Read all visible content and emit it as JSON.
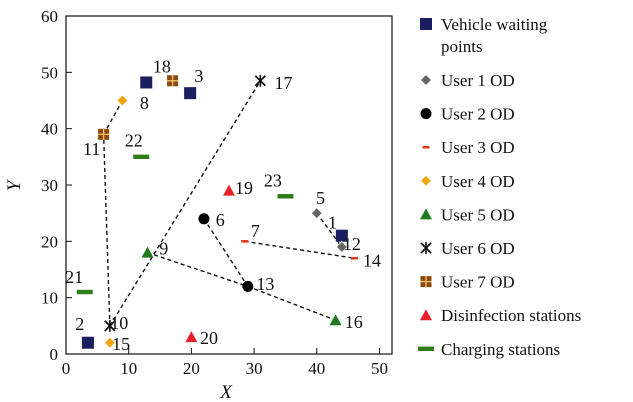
{
  "chart_data": {
    "type": "scatter",
    "title": "",
    "xlabel": "X",
    "ylabel": "Y",
    "xlim": [
      0,
      52
    ],
    "ylim": [
      0,
      60
    ],
    "xticks": [
      "0",
      "10",
      "20",
      "30",
      "40",
      "50"
    ],
    "yticks": [
      "0",
      "10",
      "20",
      "30",
      "40",
      "50",
      "60"
    ],
    "grid": false,
    "legend_position": "right-outside",
    "series": [
      {
        "name": "Vehicle waiting points",
        "marker": "square",
        "color": "#1a1f5e",
        "points": [
          {
            "id": "2",
            "x": 3.5,
            "y": 2
          },
          {
            "id": "18",
            "x": 12.8,
            "y": 48.2
          },
          {
            "id": "3",
            "x": 19.8,
            "y": 46.3
          },
          {
            "id": "1",
            "x": 44,
            "y": 21
          }
        ]
      },
      {
        "name": "User 1 OD",
        "marker": "diamond",
        "color": "#666666",
        "points": [
          {
            "id": "5",
            "x": 40,
            "y": 25
          },
          {
            "id": "12",
            "x": 44,
            "y": 19
          }
        ]
      },
      {
        "name": "User 2 OD",
        "marker": "circle",
        "color": "#000000",
        "points": [
          {
            "id": "6",
            "x": 22,
            "y": 24
          },
          {
            "id": "13",
            "x": 29,
            "y": 12
          }
        ]
      },
      {
        "name": "User 3 OD",
        "marker": "dash",
        "color": "#e03a1e",
        "points": [
          {
            "id": "7",
            "x": 28.5,
            "y": 20
          },
          {
            "id": "14",
            "x": 46,
            "y": 17
          }
        ]
      },
      {
        "name": "User 4 OD",
        "marker": "diamond",
        "color": "#f0a70f",
        "points": [
          {
            "id": "8",
            "x": 9,
            "y": 45
          },
          {
            "id": "15",
            "x": 7,
            "y": 2
          }
        ]
      },
      {
        "name": "User 5 OD",
        "marker": "triangle",
        "color": "#1f7a1f",
        "points": [
          {
            "id": "9",
            "x": 13,
            "y": 18
          },
          {
            "id": "16",
            "x": 43,
            "y": 6
          }
        ]
      },
      {
        "name": "User 6 OD",
        "marker": "star",
        "color": "#111111",
        "points": [
          {
            "id": "10",
            "x": 7,
            "y": 5
          },
          {
            "id": "17",
            "x": 31,
            "y": 48.5
          }
        ]
      },
      {
        "name": "User 7 OD",
        "marker": "boxcross",
        "color": "#8b4a12",
        "points": [
          {
            "id": "11",
            "x": 6,
            "y": 39
          },
          {
            "id": "18",
            "x": 17,
            "y": 48.5
          }
        ]
      },
      {
        "name": "Disinfection stations",
        "marker": "triangle",
        "color": "#e8202a",
        "points": [
          {
            "id": "19",
            "x": 26,
            "y": 29
          },
          {
            "id": "20",
            "x": 20,
            "y": 3
          }
        ]
      },
      {
        "name": "Charging stations",
        "marker": "bar",
        "color": "#2e7d1a",
        "points": [
          {
            "id": "21",
            "x": 3,
            "y": 11
          },
          {
            "id": "22",
            "x": 12,
            "y": 35
          },
          {
            "id": "23",
            "x": 35,
            "y": 28
          }
        ]
      }
    ],
    "routes": [
      {
        "from": [
          7,
          5
        ],
        "to": [
          6,
          39
        ]
      },
      {
        "from": [
          6,
          39
        ],
        "to": [
          9,
          45
        ]
      },
      {
        "from": [
          7,
          5
        ],
        "to": [
          31,
          48.5
        ]
      },
      {
        "from": [
          22,
          24
        ],
        "to": [
          29,
          12
        ]
      },
      {
        "from": [
          29,
          12
        ],
        "to": [
          43,
          6
        ]
      },
      {
        "from": [
          13,
          18
        ],
        "to": [
          29,
          12
        ]
      },
      {
        "from": [
          28.5,
          20
        ],
        "to": [
          46,
          17
        ]
      },
      {
        "from": [
          40,
          25
        ],
        "to": [
          44,
          19
        ]
      }
    ],
    "labels": [
      {
        "text": "1",
        "x": 42.5,
        "y": 22.3
      },
      {
        "text": "2",
        "x": 2.2,
        "y": 4.3
      },
      {
        "text": "3",
        "x": 21.2,
        "y": 48.3
      },
      {
        "text": "5",
        "x": 40.6,
        "y": 26.6
      },
      {
        "text": "6",
        "x": 24.6,
        "y": 22.7
      },
      {
        "text": "7",
        "x": 30.2,
        "y": 20.8
      },
      {
        "text": "8",
        "x": 12.5,
        "y": 43.5
      },
      {
        "text": "9",
        "x": 15.6,
        "y": 17.7
      },
      {
        "text": "10",
        "x": 8.5,
        "y": 4.4
      },
      {
        "text": "11",
        "x": 4.1,
        "y": 35.3
      },
      {
        "text": "12",
        "x": 45.6,
        "y": 18.5
      },
      {
        "text": "13",
        "x": 31.8,
        "y": 11.4
      },
      {
        "text": "14",
        "x": 48.8,
        "y": 15.5
      },
      {
        "text": "15",
        "x": 8.8,
        "y": 0.7
      },
      {
        "text": "16",
        "x": 45.9,
        "y": 4.6
      },
      {
        "text": "17",
        "x": 34.7,
        "y": 47.0
      },
      {
        "text": "18",
        "x": 15.3,
        "y": 50.0
      },
      {
        "text": "19",
        "x": 28.4,
        "y": 28.4
      },
      {
        "text": "20",
        "x": 22.8,
        "y": 1.8
      },
      {
        "text": "21",
        "x": 1.3,
        "y": 12.6
      },
      {
        "text": "22",
        "x": 10.8,
        "y": 36.8
      },
      {
        "text": "23",
        "x": 33.0,
        "y": 29.7
      }
    ]
  },
  "legend": [
    {
      "marker": "square",
      "color": "#1a1f5e",
      "lines": [
        "Vehicle waiting",
        "points"
      ]
    },
    {
      "marker": "diamond",
      "color": "#666666",
      "lines": [
        "User 1 OD"
      ]
    },
    {
      "marker": "circle",
      "color": "#000000",
      "lines": [
        "User 2 OD"
      ]
    },
    {
      "marker": "dash",
      "color": "#e03a1e",
      "lines": [
        "User 3 OD"
      ]
    },
    {
      "marker": "diamond",
      "color": "#f0a70f",
      "lines": [
        "User 4 OD"
      ]
    },
    {
      "marker": "triangle",
      "color": "#1f7a1f",
      "lines": [
        "User 5 OD"
      ]
    },
    {
      "marker": "star",
      "color": "#111111",
      "lines": [
        "User 6 OD"
      ]
    },
    {
      "marker": "boxcross",
      "color": "#8b4a12",
      "lines": [
        "User 7 OD"
      ]
    },
    {
      "marker": "triangle",
      "color": "#e8202a",
      "lines": [
        "Disinfection stations"
      ]
    },
    {
      "marker": "bar",
      "color": "#2e7d1a",
      "lines": [
        "Charging stations"
      ]
    }
  ]
}
